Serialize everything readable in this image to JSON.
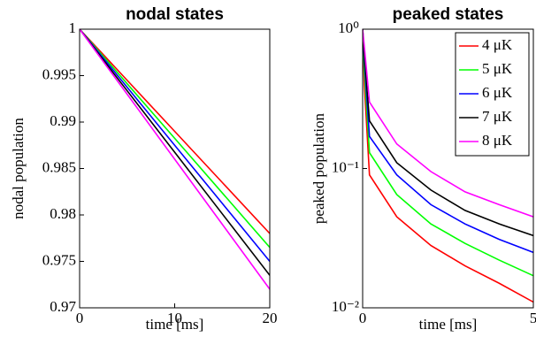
{
  "chart_data": [
    {
      "type": "line",
      "title": "nodal states",
      "xlabel": "time [ms]",
      "ylabel": "nodal population",
      "x": [
        0,
        5,
        10,
        15,
        20
      ],
      "xlim": [
        0,
        20
      ],
      "xticks": [
        0,
        10,
        20
      ],
      "ylim": [
        0.97,
        1
      ],
      "yticks": [
        0.97,
        0.975,
        0.98,
        0.985,
        0.99,
        0.995,
        1
      ],
      "series": [
        {
          "name": "4 μK",
          "color": "#ff0000",
          "values": [
            1,
            0.9945,
            0.989,
            0.9835,
            0.978
          ]
        },
        {
          "name": "5 μK",
          "color": "#00ff00",
          "values": [
            1,
            0.994125,
            0.98825,
            0.982375,
            0.9765
          ]
        },
        {
          "name": "6 μK",
          "color": "#0000ff",
          "values": [
            1,
            0.99375,
            0.9875,
            0.98125,
            0.975
          ]
        },
        {
          "name": "7 μK",
          "color": "#000000",
          "values": [
            1,
            0.993375,
            0.98675,
            0.980125,
            0.9735
          ]
        },
        {
          "name": "8 μK",
          "color": "#ff00ff",
          "values": [
            1,
            0.993,
            0.986,
            0.979,
            0.972
          ]
        }
      ]
    },
    {
      "type": "line",
      "title": "peaked states",
      "xlabel": "time [ms]",
      "ylabel": "peaked population",
      "x": [
        0,
        0.05,
        0.2,
        1,
        2,
        3,
        4,
        5
      ],
      "xlim": [
        0,
        5
      ],
      "xticks": [
        0,
        5
      ],
      "ylim": [
        0.01,
        1
      ],
      "log_y": true,
      "yticks": [
        {
          "value": 0.01,
          "label": "10⁻²"
        },
        {
          "value": 0.1,
          "label": "10⁻¹"
        },
        {
          "value": 1,
          "label": "10⁰"
        }
      ],
      "legend": "upper right",
      "series": [
        {
          "name": "4 μK",
          "color": "#ff0000",
          "values": [
            1,
            0.4,
            0.09,
            0.045,
            0.028,
            0.02,
            0.015,
            0.011
          ]
        },
        {
          "name": "5 μK",
          "color": "#00ff00",
          "values": [
            1,
            0.5,
            0.13,
            0.065,
            0.04,
            0.029,
            0.022,
            0.017
          ]
        },
        {
          "name": "6 μK",
          "color": "#0000ff",
          "values": [
            1,
            0.6,
            0.17,
            0.09,
            0.055,
            0.04,
            0.031,
            0.025
          ]
        },
        {
          "name": "7 μK",
          "color": "#000000",
          "values": [
            1,
            0.65,
            0.22,
            0.11,
            0.07,
            0.05,
            0.04,
            0.033
          ]
        },
        {
          "name": "8 μK",
          "color": "#ff00ff",
          "values": [
            1,
            0.75,
            0.3,
            0.15,
            0.095,
            0.068,
            0.055,
            0.045
          ]
        }
      ]
    }
  ]
}
